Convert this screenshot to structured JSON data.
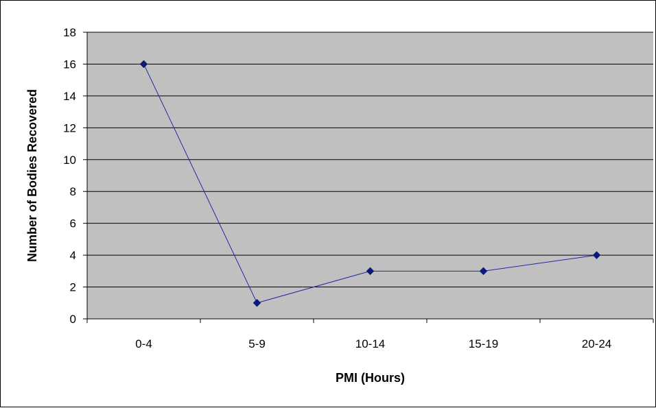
{
  "chart_data": {
    "type": "line",
    "title": "",
    "xlabel": "PMI (Hours)",
    "ylabel": "Number of Bodies Recovered",
    "categories": [
      "0-4",
      "5-9",
      "10-14",
      "15-19",
      "20-24"
    ],
    "series": [
      {
        "values": [
          16,
          1,
          3,
          3,
          4
        ]
      }
    ],
    "ylim": [
      0,
      18
    ],
    "yticks": [
      0,
      2,
      4,
      6,
      8,
      10,
      12,
      14,
      16,
      18
    ],
    "grid": true,
    "legend": "none",
    "colors": {
      "plot_background": "#c0c0c0",
      "line": "#1f2aa0",
      "marker": "#0b1a7a",
      "gridline": "#000000"
    }
  }
}
